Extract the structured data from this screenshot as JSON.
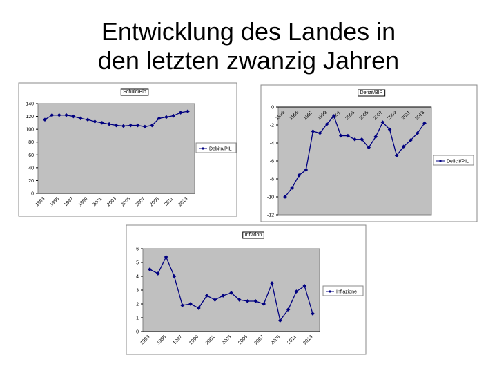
{
  "title": "Entwicklung des Landes in den letzten zwanzig Jahren",
  "chart_data": [
    {
      "type": "line",
      "title": "Schuld/Bip",
      "categories": [
        "1993",
        null,
        "1995",
        null,
        "1997",
        null,
        "1999",
        null,
        "2001",
        null,
        "2003",
        null,
        "2005",
        null,
        "2007",
        null,
        "2009",
        null,
        "2011",
        null,
        "2013"
      ],
      "series": [
        {
          "name": "Debito/PIL",
          "color": "#000080",
          "values": [
            115,
            122,
            122,
            122,
            120,
            117,
            115,
            112,
            110,
            108,
            106,
            105,
            106,
            106,
            104,
            106,
            117,
            119,
            121,
            126,
            128
          ]
        }
      ],
      "ylim": [
        0,
        140
      ],
      "yticks": [
        0,
        20,
        40,
        60,
        80,
        100,
        120,
        140
      ]
    },
    {
      "type": "line",
      "title": "Defizit/BIP",
      "categories": [
        "1993",
        null,
        "1995",
        null,
        "1997",
        null,
        "1999",
        null,
        "2001",
        null,
        "2003",
        null,
        "2005",
        null,
        "2007",
        null,
        "2009",
        null,
        "2011",
        null,
        "2013"
      ],
      "series": [
        {
          "name": "Deficit/PIL",
          "color": "#000080",
          "values": [
            -10,
            -9,
            -7.6,
            -7,
            -2.7,
            -2.9,
            -1.9,
            -1,
            -3.2,
            -3.2,
            -3.6,
            -3.6,
            -4.5,
            -3.3,
            -1.7,
            -2.5,
            -5.4,
            -4.4,
            -3.7,
            -2.9,
            -1.8
          ]
        }
      ],
      "ylim": [
        -12,
        0
      ],
      "yticks": [
        -12,
        -10,
        -8,
        -6,
        -4,
        -2,
        0
      ]
    },
    {
      "type": "line",
      "title": "Inflation",
      "categories": [
        "1993",
        null,
        "1995",
        null,
        "1997",
        null,
        "1999",
        null,
        "2001",
        null,
        "2003",
        null,
        "2005",
        null,
        "2007",
        null,
        "2009",
        null,
        "2011",
        null,
        "2013"
      ],
      "series": [
        {
          "name": "Inflazione",
          "color": "#000080",
          "values": [
            4.5,
            4.2,
            5.4,
            4.0,
            1.9,
            2.0,
            1.7,
            2.6,
            2.3,
            2.6,
            2.8,
            2.3,
            2.2,
            2.2,
            2.0,
            3.5,
            0.8,
            1.6,
            2.9,
            3.3,
            1.3
          ]
        }
      ],
      "ylim": [
        0,
        6
      ],
      "yticks": [
        0,
        1,
        2,
        3,
        4,
        5,
        6
      ]
    }
  ]
}
